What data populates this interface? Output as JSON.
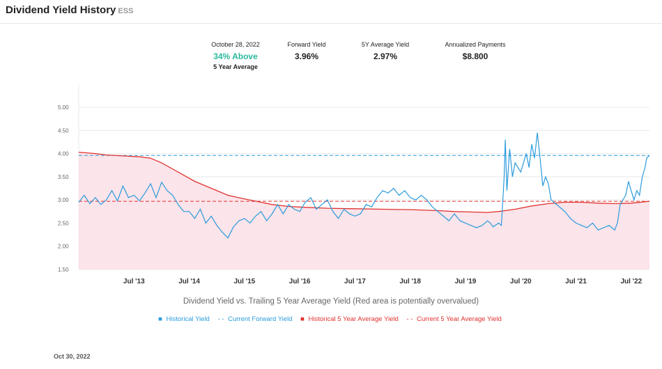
{
  "header": {
    "title": "Dividend Yield History",
    "ticker": "ESS"
  },
  "stats": {
    "date_label": "October 28, 2022",
    "above_value": "34% Above",
    "above_sub": "5 Year Average",
    "forward_label": "Forward Yield",
    "forward_value": "3.96%",
    "avg_label": "5Y Average Yield",
    "avg_value": "2.97%",
    "payments_label": "Annualized Payments",
    "payments_value": "$8.800"
  },
  "caption": "Dividend Yield vs. Trailing 5 Year Average Yield (Red area is potentially overvalued)",
  "legend": {
    "historical": "Historical Yield",
    "forward": "Current Forward Yield",
    "hist5": "Historical 5 Year Average Yield",
    "cur5": "Current 5 Year Average Yield"
  },
  "footer_date": "Oct 30, 2022",
  "colors": {
    "blue": "#2a9bdc",
    "red": "#e0322f",
    "fill": "#fbe4ea",
    "green": "#2ab89c"
  },
  "chart_data": {
    "type": "line",
    "xlim": [
      2012.5,
      2022.83
    ],
    "ylim": [
      1.5,
      5.0
    ],
    "yticks": [
      "1.50",
      "2.00",
      "2.50",
      "3.00",
      "3.50",
      "4.00",
      "4.50",
      "5.00"
    ],
    "xticks": [
      {
        "t": 2013.5,
        "label": "Jul '13"
      },
      {
        "t": 2014.5,
        "label": "Jul '14"
      },
      {
        "t": 2015.5,
        "label": "Jul '15"
      },
      {
        "t": 2016.5,
        "label": "Jul '16"
      },
      {
        "t": 2017.5,
        "label": "Jul '17"
      },
      {
        "t": 2018.5,
        "label": "Jul '18"
      },
      {
        "t": 2019.5,
        "label": "Jul '19"
      },
      {
        "t": 2020.5,
        "label": "Jul '20"
      },
      {
        "t": 2021.5,
        "label": "Jul '21"
      },
      {
        "t": 2022.5,
        "label": "Jul '22"
      }
    ],
    "forward_yield": 3.96,
    "current_5y_avg": 2.97,
    "series": [
      {
        "name": "Historical Yield",
        "points": [
          [
            2012.5,
            2.95
          ],
          [
            2012.6,
            3.1
          ],
          [
            2012.7,
            2.92
          ],
          [
            2012.8,
            3.05
          ],
          [
            2012.9,
            2.9
          ],
          [
            2013.0,
            3.0
          ],
          [
            2013.1,
            3.2
          ],
          [
            2013.2,
            2.98
          ],
          [
            2013.3,
            3.3
          ],
          [
            2013.4,
            3.05
          ],
          [
            2013.5,
            3.1
          ],
          [
            2013.6,
            2.98
          ],
          [
            2013.7,
            3.15
          ],
          [
            2013.8,
            3.35
          ],
          [
            2013.9,
            3.05
          ],
          [
            2014.0,
            3.38
          ],
          [
            2014.1,
            3.2
          ],
          [
            2014.2,
            3.1
          ],
          [
            2014.3,
            2.9
          ],
          [
            2014.4,
            2.75
          ],
          [
            2014.5,
            2.75
          ],
          [
            2014.6,
            2.6
          ],
          [
            2014.7,
            2.8
          ],
          [
            2014.8,
            2.5
          ],
          [
            2014.9,
            2.65
          ],
          [
            2015.0,
            2.45
          ],
          [
            2015.1,
            2.3
          ],
          [
            2015.2,
            2.18
          ],
          [
            2015.3,
            2.42
          ],
          [
            2015.4,
            2.55
          ],
          [
            2015.5,
            2.6
          ],
          [
            2015.6,
            2.5
          ],
          [
            2015.7,
            2.65
          ],
          [
            2015.8,
            2.75
          ],
          [
            2015.9,
            2.55
          ],
          [
            2016.0,
            2.7
          ],
          [
            2016.1,
            2.9
          ],
          [
            2016.2,
            2.7
          ],
          [
            2016.3,
            2.9
          ],
          [
            2016.4,
            2.8
          ],
          [
            2016.5,
            2.75
          ],
          [
            2016.6,
            2.95
          ],
          [
            2016.7,
            3.05
          ],
          [
            2016.8,
            2.8
          ],
          [
            2016.9,
            2.9
          ],
          [
            2017.0,
            3.0
          ],
          [
            2017.1,
            2.75
          ],
          [
            2017.2,
            2.6
          ],
          [
            2017.3,
            2.8
          ],
          [
            2017.4,
            2.7
          ],
          [
            2017.5,
            2.65
          ],
          [
            2017.6,
            2.7
          ],
          [
            2017.7,
            2.9
          ],
          [
            2017.8,
            2.85
          ],
          [
            2017.9,
            3.05
          ],
          [
            2018.0,
            3.2
          ],
          [
            2018.1,
            3.15
          ],
          [
            2018.2,
            3.25
          ],
          [
            2018.3,
            3.1
          ],
          [
            2018.4,
            3.2
          ],
          [
            2018.5,
            3.05
          ],
          [
            2018.6,
            3.0
          ],
          [
            2018.7,
            3.1
          ],
          [
            2018.8,
            3.0
          ],
          [
            2018.9,
            2.85
          ],
          [
            2019.0,
            2.75
          ],
          [
            2019.1,
            2.65
          ],
          [
            2019.2,
            2.55
          ],
          [
            2019.3,
            2.7
          ],
          [
            2019.4,
            2.55
          ],
          [
            2019.5,
            2.5
          ],
          [
            2019.6,
            2.45
          ],
          [
            2019.7,
            2.4
          ],
          [
            2019.8,
            2.45
          ],
          [
            2019.9,
            2.55
          ],
          [
            2019.95,
            2.5
          ],
          [
            2020.0,
            2.42
          ],
          [
            2020.1,
            2.5
          ],
          [
            2020.15,
            2.45
          ],
          [
            2020.2,
            3.5
          ],
          [
            2020.22,
            4.3
          ],
          [
            2020.25,
            3.2
          ],
          [
            2020.3,
            4.1
          ],
          [
            2020.35,
            3.5
          ],
          [
            2020.4,
            3.8
          ],
          [
            2020.5,
            3.6
          ],
          [
            2020.6,
            4.0
          ],
          [
            2020.65,
            3.7
          ],
          [
            2020.7,
            4.2
          ],
          [
            2020.75,
            3.9
          ],
          [
            2020.8,
            4.45
          ],
          [
            2020.85,
            3.9
          ],
          [
            2020.9,
            3.3
          ],
          [
            2020.95,
            3.5
          ],
          [
            2021.0,
            3.35
          ],
          [
            2021.05,
            3.0
          ],
          [
            2021.1,
            2.95
          ],
          [
            2021.2,
            2.85
          ],
          [
            2021.3,
            2.75
          ],
          [
            2021.4,
            2.6
          ],
          [
            2021.5,
            2.5
          ],
          [
            2021.6,
            2.45
          ],
          [
            2021.7,
            2.4
          ],
          [
            2021.8,
            2.5
          ],
          [
            2021.9,
            2.35
          ],
          [
            2022.0,
            2.4
          ],
          [
            2022.1,
            2.45
          ],
          [
            2022.2,
            2.35
          ],
          [
            2022.25,
            2.5
          ],
          [
            2022.3,
            2.9
          ],
          [
            2022.35,
            3.0
          ],
          [
            2022.4,
            3.1
          ],
          [
            2022.45,
            3.4
          ],
          [
            2022.5,
            3.2
          ],
          [
            2022.55,
            3.0
          ],
          [
            2022.6,
            3.2
          ],
          [
            2022.65,
            3.1
          ],
          [
            2022.7,
            3.5
          ],
          [
            2022.75,
            3.7
          ],
          [
            2022.78,
            3.9
          ],
          [
            2022.83,
            3.96
          ]
        ]
      },
      {
        "name": "Historical 5 Year Average Yield",
        "points": [
          [
            2012.5,
            4.03
          ],
          [
            2012.8,
            4.0
          ],
          [
            2013.0,
            3.97
          ],
          [
            2013.3,
            3.95
          ],
          [
            2013.6,
            3.93
          ],
          [
            2013.8,
            3.9
          ],
          [
            2014.0,
            3.8
          ],
          [
            2014.3,
            3.6
          ],
          [
            2014.6,
            3.4
          ],
          [
            2014.9,
            3.25
          ],
          [
            2015.2,
            3.1
          ],
          [
            2015.5,
            3.02
          ],
          [
            2015.8,
            2.95
          ],
          [
            2016.0,
            2.9
          ],
          [
            2016.3,
            2.86
          ],
          [
            2016.6,
            2.84
          ],
          [
            2017.0,
            2.82
          ],
          [
            2017.5,
            2.81
          ],
          [
            2018.0,
            2.8
          ],
          [
            2018.5,
            2.79
          ],
          [
            2019.0,
            2.77
          ],
          [
            2019.3,
            2.75
          ],
          [
            2019.6,
            2.74
          ],
          [
            2019.9,
            2.73
          ],
          [
            2020.1,
            2.75
          ],
          [
            2020.4,
            2.8
          ],
          [
            2020.7,
            2.87
          ],
          [
            2021.0,
            2.92
          ],
          [
            2021.3,
            2.95
          ],
          [
            2021.6,
            2.95
          ],
          [
            2021.9,
            2.93
          ],
          [
            2022.2,
            2.92
          ],
          [
            2022.5,
            2.93
          ],
          [
            2022.83,
            2.97
          ]
        ]
      }
    ]
  }
}
